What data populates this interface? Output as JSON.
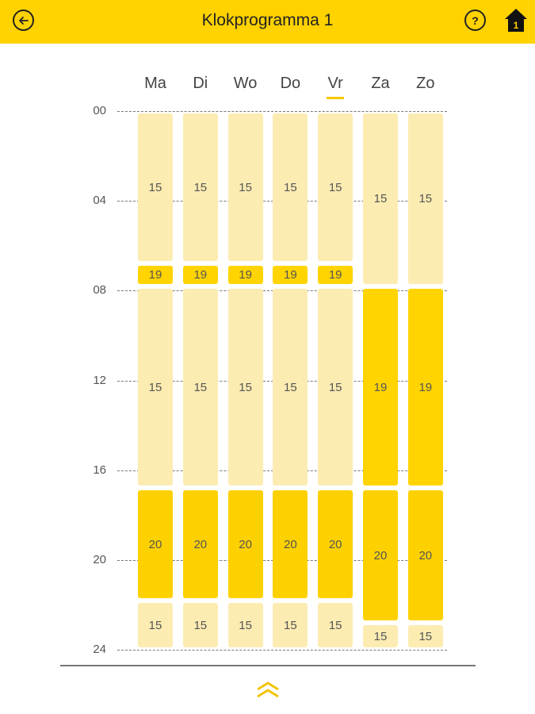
{
  "header": {
    "title": "Klokprogramma 1",
    "back_icon": "arrow-left-icon",
    "help_label": "?",
    "home_badge": "1"
  },
  "colors": {
    "accent": "#ffd200",
    "low": "#fcecb2",
    "medium": "#ffd400",
    "high": "#fdd100"
  },
  "days": [
    {
      "label": "Ma",
      "today": false
    },
    {
      "label": "Di",
      "today": false
    },
    {
      "label": "Wo",
      "today": false
    },
    {
      "label": "Do",
      "today": false
    },
    {
      "label": "Vr",
      "today": true
    },
    {
      "label": "Za",
      "today": false
    },
    {
      "label": "Zo",
      "today": false
    }
  ],
  "hour_ticks": [
    "00",
    "04",
    "08",
    "12",
    "16",
    "20",
    "24"
  ],
  "schedule": {
    "Ma": [
      {
        "start": 0,
        "end": 6.8,
        "temp": "15"
      },
      {
        "start": 6.8,
        "end": 7.8,
        "temp": "19"
      },
      {
        "start": 7.8,
        "end": 16.8,
        "temp": "15"
      },
      {
        "start": 16.8,
        "end": 21.8,
        "temp": "20"
      },
      {
        "start": 21.8,
        "end": 24,
        "temp": "15"
      }
    ],
    "Di": [
      {
        "start": 0,
        "end": 6.8,
        "temp": "15"
      },
      {
        "start": 6.8,
        "end": 7.8,
        "temp": "19"
      },
      {
        "start": 7.8,
        "end": 16.8,
        "temp": "15"
      },
      {
        "start": 16.8,
        "end": 21.8,
        "temp": "20"
      },
      {
        "start": 21.8,
        "end": 24,
        "temp": "15"
      }
    ],
    "Wo": [
      {
        "start": 0,
        "end": 6.8,
        "temp": "15"
      },
      {
        "start": 6.8,
        "end": 7.8,
        "temp": "19"
      },
      {
        "start": 7.8,
        "end": 16.8,
        "temp": "15"
      },
      {
        "start": 16.8,
        "end": 21.8,
        "temp": "20"
      },
      {
        "start": 21.8,
        "end": 24,
        "temp": "15"
      }
    ],
    "Do": [
      {
        "start": 0,
        "end": 6.8,
        "temp": "15"
      },
      {
        "start": 6.8,
        "end": 7.8,
        "temp": "19"
      },
      {
        "start": 7.8,
        "end": 16.8,
        "temp": "15"
      },
      {
        "start": 16.8,
        "end": 21.8,
        "temp": "20"
      },
      {
        "start": 21.8,
        "end": 24,
        "temp": "15"
      }
    ],
    "Vr": [
      {
        "start": 0,
        "end": 6.8,
        "temp": "15"
      },
      {
        "start": 6.8,
        "end": 7.8,
        "temp": "19"
      },
      {
        "start": 7.8,
        "end": 16.8,
        "temp": "15"
      },
      {
        "start": 16.8,
        "end": 21.8,
        "temp": "20"
      },
      {
        "start": 21.8,
        "end": 24,
        "temp": "15"
      }
    ],
    "Za": [
      {
        "start": 0,
        "end": 7.8,
        "temp": "15"
      },
      {
        "start": 7.8,
        "end": 16.8,
        "temp": "19"
      },
      {
        "start": 16.8,
        "end": 22.8,
        "temp": "20"
      },
      {
        "start": 22.8,
        "end": 24,
        "temp": "15"
      }
    ],
    "Zo": [
      {
        "start": 0,
        "end": 7.8,
        "temp": "15"
      },
      {
        "start": 7.8,
        "end": 16.8,
        "temp": "19"
      },
      {
        "start": 16.8,
        "end": 22.8,
        "temp": "20"
      },
      {
        "start": 22.8,
        "end": 24,
        "temp": "15"
      }
    ]
  },
  "footer": {
    "collapse_icon": "double-chevron-up-icon"
  }
}
